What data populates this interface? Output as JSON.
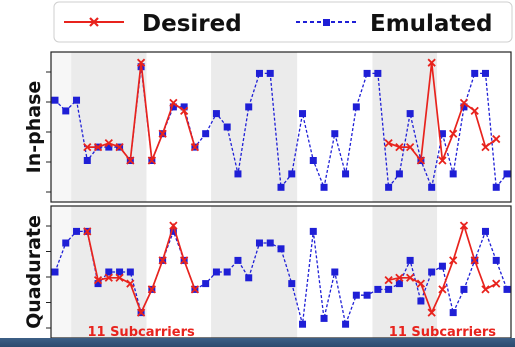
{
  "chart_data": {
    "type": "line",
    "legend": {
      "placement": "top",
      "entries": [
        {
          "label": "Desired",
          "color": "#e8231d",
          "marker": "x"
        },
        {
          "label": "Emulated",
          "color": "#1f1fd6",
          "marker": "square"
        }
      ]
    },
    "shading": {
      "band_color": "#ebebeb",
      "bands": [
        [
          2,
          8
        ],
        [
          15,
          22
        ],
        [
          30,
          35
        ]
      ]
    },
    "annotation_text": "11 Subcarriers",
    "desired_ranges": [
      [
        3,
        13
      ],
      [
        31,
        41
      ]
    ],
    "series_x_max": 42,
    "panels": [
      {
        "ylabel": "In-phase",
        "ylim": [
          0,
          10
        ],
        "emulated": [
          7,
          6.2,
          7,
          2.5,
          3.5,
          3.5,
          3.5,
          2.5,
          9.5,
          2.5,
          4.5,
          6.5,
          6.5,
          3.5,
          4.5,
          6,
          5,
          1.5,
          6.5,
          9,
          9,
          0.5,
          1.5,
          6,
          2.5,
          0.5,
          4.5,
          1.5,
          6.5,
          9,
          9,
          0.5,
          1.5,
          6,
          2.5,
          0.5,
          4.5,
          1.5,
          6.5,
          9,
          9,
          0.5,
          1.5
        ],
        "desired": [
          7,
          6.2,
          7,
          3.5,
          3.5,
          3.8,
          3.5,
          2.5,
          9.8,
          2.5,
          4.5,
          6.8,
          6.2,
          3.5,
          4.1,
          6,
          5,
          1.5,
          6.5,
          9,
          9,
          0.5,
          1.5,
          6,
          2.5,
          0.5,
          4.5,
          1.5,
          6.5,
          9,
          9,
          3.8,
          3.5,
          3.5,
          2.5,
          9.8,
          2.5,
          4.5,
          6.8,
          6.2,
          3.5,
          4.1,
          1.5
        ]
      },
      {
        "ylabel": "Quadurate",
        "ylim": [
          0,
          10
        ],
        "emulated": [
          5,
          7.5,
          8.5,
          8.5,
          4,
          5,
          5,
          5,
          1.5,
          3.5,
          6,
          8.5,
          6,
          3.5,
          4,
          5,
          5,
          6,
          4.5,
          7.5,
          7.5,
          7,
          4,
          0.5,
          8.5,
          1,
          5,
          0.5,
          3,
          3,
          3.5,
          3.5,
          4,
          6,
          2.5,
          5,
          5.5,
          1.5,
          3.5,
          6,
          8.5,
          6,
          3.5
        ],
        "desired": [
          5,
          7.5,
          8.5,
          8.5,
          4.3,
          4.5,
          4.5,
          4,
          1.5,
          3.5,
          6,
          9,
          6,
          3.5,
          4,
          4.5,
          5,
          6,
          4.5,
          7.5,
          7.5,
          7,
          4,
          0.5,
          8.5,
          1,
          5,
          0.5,
          3,
          3,
          3.5,
          4.3,
          4.5,
          4.5,
          4,
          1.5,
          3.5,
          6,
          9,
          6,
          3.5,
          4,
          3.5
        ]
      }
    ]
  }
}
